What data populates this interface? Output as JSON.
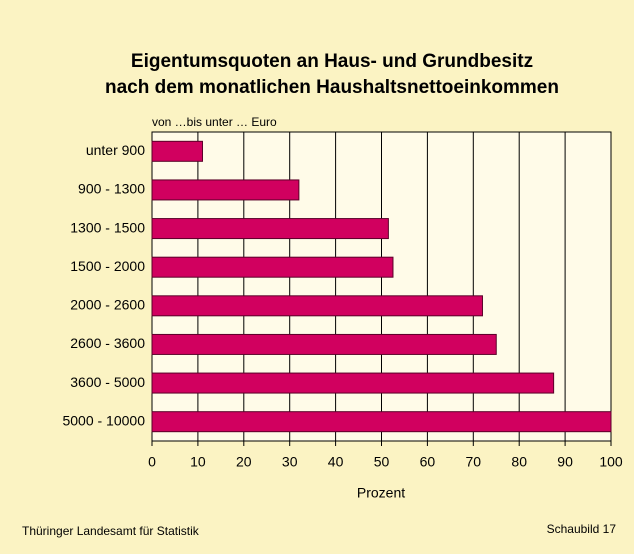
{
  "chart_data": {
    "type": "barh",
    "title": [
      "Eigentumsquoten an Haus- und Grundbesitz",
      "nach dem monatlichen Haushaltsnettoeinkommen"
    ],
    "subtitle": "von …bis unter … Euro",
    "categories": [
      "unter 900",
      "900 - 1300",
      "1300 - 1500",
      "1500 - 2000",
      "2000 - 2600",
      "2600 - 3600",
      "3600 - 5000",
      "5000 - 10000"
    ],
    "values": [
      11,
      32,
      51.5,
      52.5,
      72,
      75,
      87.5,
      100
    ],
    "color": "#d1005f",
    "xlabel": "Prozent",
    "xlim": [
      0,
      100
    ],
    "xticks": [
      0,
      10,
      20,
      30,
      40,
      50,
      60,
      70,
      80,
      90,
      100
    ],
    "grid": true,
    "source": "Thüringer Landesamt für Statistik",
    "figure_label": "Schaubild 17"
  }
}
